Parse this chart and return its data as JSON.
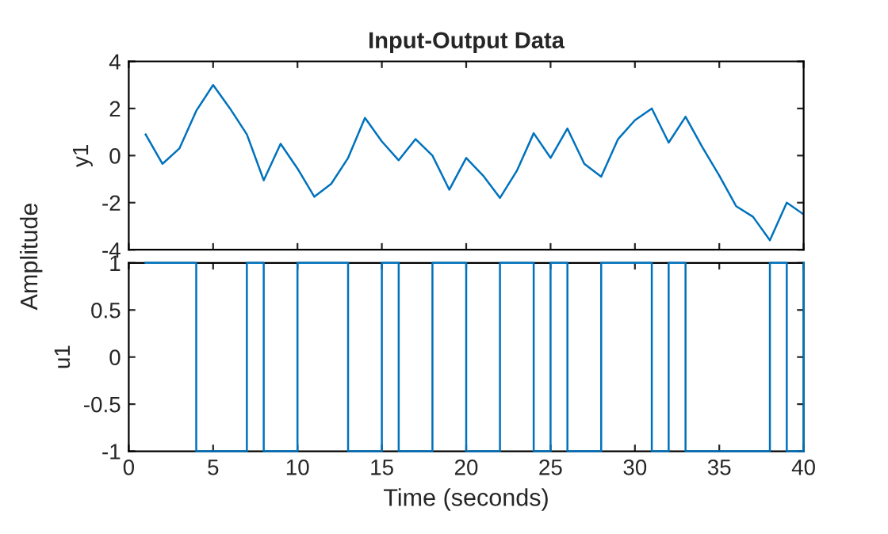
{
  "chart_data": [
    {
      "type": "line",
      "title": "Input-Output Data",
      "ylabel": "y1",
      "annotations": [
        "Amplitude"
      ],
      "x": [
        1,
        2,
        3,
        4,
        5,
        6,
        7,
        8,
        9,
        10,
        11,
        12,
        13,
        14,
        15,
        16,
        17,
        18,
        19,
        20,
        21,
        22,
        23,
        24,
        25,
        26,
        27,
        28,
        29,
        30,
        31,
        32,
        33,
        34,
        35,
        36,
        37,
        38,
        39,
        40
      ],
      "series": [
        {
          "color": "#0072bd",
          "values": [
            0.9,
            -0.35,
            0.3,
            1.9,
            3.0,
            2.0,
            0.9,
            -1.05,
            0.5,
            -0.55,
            -1.75,
            -1.2,
            -0.1,
            1.6,
            0.6,
            -0.2,
            0.7,
            0.0,
            -1.45,
            -0.1,
            -0.85,
            -1.8,
            -0.65,
            0.95,
            -0.1,
            1.15,
            -0.35,
            -0.9,
            0.7,
            1.5,
            2.0,
            0.55,
            1.65,
            0.35,
            -0.85,
            -2.15,
            -2.6,
            -3.6,
            -2.0,
            -2.5
          ]
        }
      ],
      "xlim": [
        0,
        40
      ],
      "xticks": [
        0,
        5,
        10,
        15,
        20,
        25,
        30,
        35,
        40
      ],
      "ylim": [
        -4,
        4
      ],
      "yticks": [
        -4,
        -2,
        0,
        2,
        4
      ],
      "tick_labels": "y",
      "grid": false,
      "legend": false
    },
    {
      "type": "step",
      "xlabel": "Time (seconds)",
      "ylabel": "u1",
      "x": [
        1,
        2,
        3,
        4,
        5,
        6,
        7,
        8,
        9,
        10,
        11,
        12,
        13,
        14,
        15,
        16,
        17,
        18,
        19,
        20,
        21,
        22,
        23,
        24,
        25,
        26,
        27,
        28,
        29,
        30,
        31,
        32,
        33,
        34,
        35,
        36,
        37,
        38,
        39,
        40
      ],
      "series": [
        {
          "color": "#0072bd",
          "values": [
            1,
            1,
            1,
            -1,
            -1,
            -1,
            1,
            -1,
            -1,
            1,
            1,
            1,
            -1,
            -1,
            1,
            -1,
            -1,
            1,
            1,
            -1,
            -1,
            1,
            1,
            -1,
            1,
            -1,
            -1,
            1,
            1,
            1,
            -1,
            1,
            -1,
            -1,
            -1,
            -1,
            -1,
            1,
            -1,
            1
          ]
        }
      ],
      "xlim": [
        0,
        40
      ],
      "xticks": [
        0,
        5,
        10,
        15,
        20,
        25,
        30,
        35,
        40
      ],
      "ylim": [
        -1,
        1
      ],
      "yticks": [
        -1,
        -0.5,
        0,
        0.5,
        1
      ],
      "grid": false,
      "legend": false
    }
  ]
}
